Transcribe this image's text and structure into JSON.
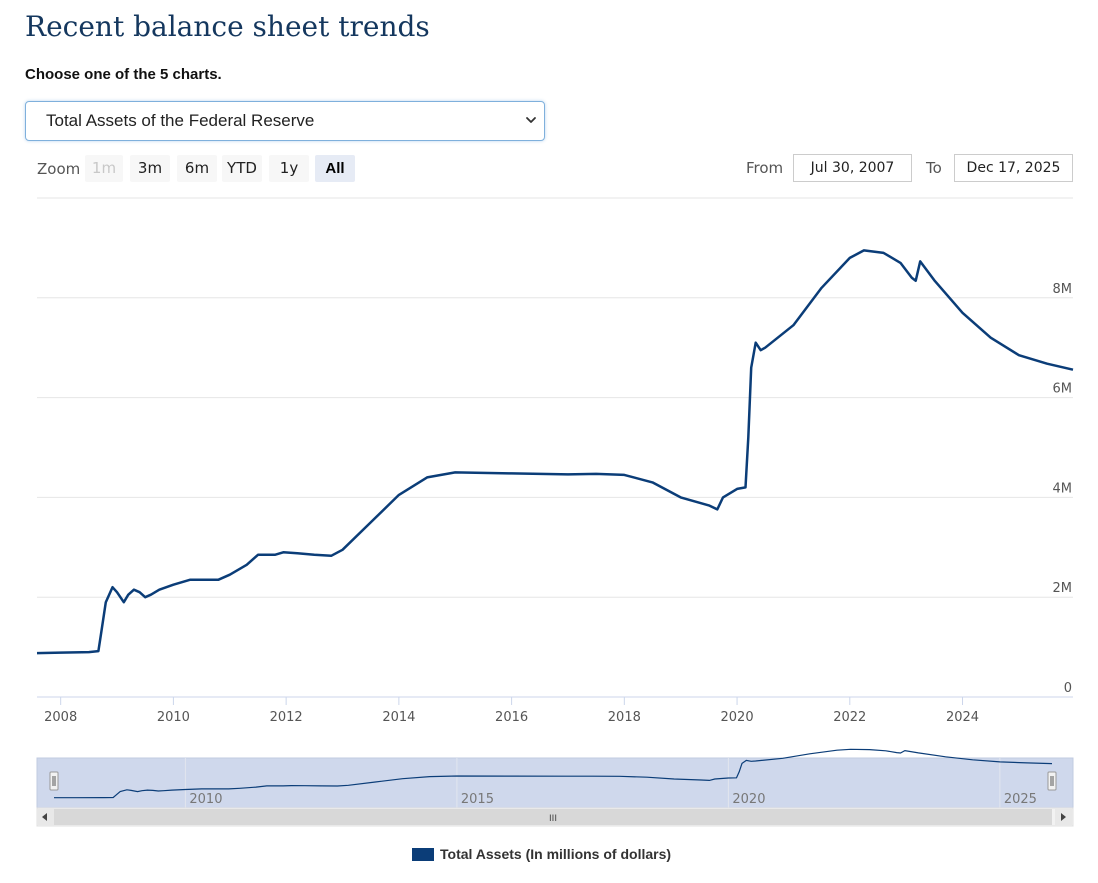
{
  "page": {
    "title": "Recent balance sheet trends",
    "subtitle": "Choose one of the 5 charts.",
    "select_value": "Total Assets of the Federal Reserve"
  },
  "toolbar": {
    "zoom_label": "Zoom",
    "buttons": [
      "1m",
      "3m",
      "6m",
      "YTD",
      "1y",
      "All"
    ],
    "active": "All",
    "disabled": [
      "1m"
    ],
    "from_label": "From",
    "from_value": "Jul 30, 2007",
    "to_label": "To",
    "to_value": "Dec 17, 2025"
  },
  "colors": {
    "series": "#0b3d78",
    "navigator_fill": "#cfd8ec",
    "grid": "#e6e6e6"
  },
  "navigator": {
    "ticks": [
      "2010",
      "2015",
      "2020",
      "2025"
    ],
    "grip": "III"
  },
  "chart_data": {
    "type": "line",
    "title": "",
    "xlabel": "",
    "ylabel": "",
    "x_ticks": [
      "2008",
      "2010",
      "2012",
      "2014",
      "2016",
      "2018",
      "2020",
      "2022",
      "2024"
    ],
    "y_ticks": [
      "0",
      "2M",
      "4M",
      "6M",
      "8M"
    ],
    "xlim": [
      2007.58,
      2025.96
    ],
    "ylim": [
      0,
      10000000
    ],
    "grid": true,
    "legend": "bottom-center",
    "series": [
      {
        "name": "Total Assets (In millions of dollars)",
        "x": [
          2007.58,
          2008.0,
          2008.5,
          2008.67,
          2008.72,
          2008.8,
          2008.92,
          2009.0,
          2009.12,
          2009.2,
          2009.3,
          2009.4,
          2009.5,
          2009.6,
          2009.75,
          2010.0,
          2010.3,
          2010.8,
          2011.0,
          2011.3,
          2011.5,
          2011.8,
          2011.95,
          2012.2,
          2012.5,
          2012.8,
          2013.0,
          2013.5,
          2014.0,
          2014.5,
          2015.0,
          2016.0,
          2017.0,
          2017.5,
          2018.0,
          2018.5,
          2019.0,
          2019.5,
          2019.65,
          2019.75,
          2020.0,
          2020.15,
          2020.2,
          2020.25,
          2020.33,
          2020.42,
          2020.5,
          2021.0,
          2021.5,
          2022.0,
          2022.25,
          2022.6,
          2022.9,
          2023.1,
          2023.17,
          2023.25,
          2023.5,
          2024.0,
          2024.5,
          2025.0,
          2025.5,
          2025.96
        ],
        "y": [
          880000,
          890000,
          900000,
          920000,
          1300000,
          1900000,
          2200000,
          2100000,
          1900000,
          2050000,
          2150000,
          2100000,
          2000000,
          2050000,
          2150000,
          2250000,
          2350000,
          2350000,
          2450000,
          2650000,
          2850000,
          2850000,
          2900000,
          2880000,
          2850000,
          2830000,
          2950000,
          3500000,
          4050000,
          4400000,
          4500000,
          4480000,
          4460000,
          4470000,
          4450000,
          4300000,
          4000000,
          3840000,
          3760000,
          4000000,
          4170000,
          4200000,
          5200000,
          6600000,
          7100000,
          6950000,
          7000000,
          7450000,
          8200000,
          8800000,
          8950000,
          8900000,
          8700000,
          8400000,
          8340000,
          8730000,
          8350000,
          7700000,
          7200000,
          6850000,
          6680000,
          6560000
        ]
      }
    ]
  }
}
